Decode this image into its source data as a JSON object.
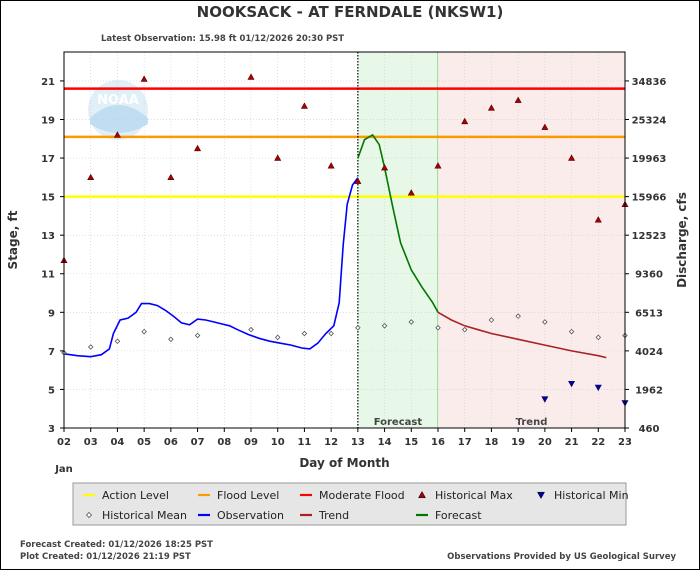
{
  "header": {
    "title": "NOOKSACK - AT FERNDALE  (NKSW1)",
    "latest_observation": "Latest Observation:  15.98 ft 01/12/2026 20:30 PST"
  },
  "footer": {
    "forecast_created": "Forecast Created: 01/12/2026 18:25 PST",
    "plot_created": "Plot Created: 01/12/2026 21:19 PST",
    "credit": "Observations Provided by US Geological Survey"
  },
  "chart_data": {
    "type": "line",
    "xlabel": "Day of Month",
    "x_month_label": "Jan",
    "ylabel": "Stage, ft",
    "y2label": "Discharge, cfs",
    "xlim": [
      2,
      23
    ],
    "ylim": [
      3,
      22.5
    ],
    "x_ticks": [
      "02",
      "03",
      "04",
      "05",
      "06",
      "07",
      "08",
      "09",
      "10",
      "11",
      "12",
      "13",
      "14",
      "15",
      "16",
      "17",
      "18",
      "19",
      "20",
      "21",
      "22",
      "23"
    ],
    "y_ticks": [
      3,
      5,
      7,
      9,
      11,
      13,
      15,
      17,
      19,
      21
    ],
    "y2_ticks": [
      {
        "stage": 3,
        "label": "460"
      },
      {
        "stage": 5,
        "label": "1962"
      },
      {
        "stage": 7,
        "label": "4024"
      },
      {
        "stage": 9,
        "label": "6513"
      },
      {
        "stage": 11,
        "label": "9360"
      },
      {
        "stage": 13,
        "label": "12523"
      },
      {
        "stage": 15,
        "label": "15966"
      },
      {
        "stage": 17,
        "label": "19963"
      },
      {
        "stage": 19,
        "label": "25324"
      },
      {
        "stage": 21,
        "label": "34836"
      }
    ],
    "grid": true,
    "levels": [
      {
        "name": "Action Level",
        "value": 15.0,
        "color": "#ffff00"
      },
      {
        "name": "Flood Level",
        "value": 18.1,
        "color": "#ff9900"
      },
      {
        "name": "Moderate Flood",
        "value": 20.6,
        "color": "#ff0000"
      }
    ],
    "regions": [
      {
        "label": "Forecast",
        "from": 13,
        "to": 16,
        "color": "#e8f8e8",
        "border": "#33cc33"
      },
      {
        "label": "Trend",
        "from": 16,
        "to": 23,
        "color": "#fbecec",
        "border": "#ff9999"
      }
    ],
    "observation_time": 13.0,
    "series": [
      {
        "name": "Observation",
        "color": "#0000ff",
        "points": [
          [
            2.0,
            6.85
          ],
          [
            2.5,
            6.75
          ],
          [
            3.0,
            6.7
          ],
          [
            3.4,
            6.8
          ],
          [
            3.7,
            7.1
          ],
          [
            3.85,
            7.9
          ],
          [
            4.1,
            8.6
          ],
          [
            4.4,
            8.7
          ],
          [
            4.7,
            9.0
          ],
          [
            4.9,
            9.45
          ],
          [
            5.2,
            9.45
          ],
          [
            5.5,
            9.35
          ],
          [
            5.8,
            9.1
          ],
          [
            6.1,
            8.8
          ],
          [
            6.4,
            8.45
          ],
          [
            6.7,
            8.35
          ],
          [
            7.0,
            8.65
          ],
          [
            7.3,
            8.6
          ],
          [
            7.6,
            8.5
          ],
          [
            7.9,
            8.4
          ],
          [
            8.2,
            8.3
          ],
          [
            8.5,
            8.1
          ],
          [
            8.9,
            7.85
          ],
          [
            9.3,
            7.65
          ],
          [
            9.7,
            7.5
          ],
          [
            10.1,
            7.4
          ],
          [
            10.5,
            7.3
          ],
          [
            10.9,
            7.15
          ],
          [
            11.2,
            7.1
          ],
          [
            11.5,
            7.4
          ],
          [
            11.8,
            7.9
          ],
          [
            12.1,
            8.3
          ],
          [
            12.3,
            9.5
          ],
          [
            12.45,
            12.5
          ],
          [
            12.6,
            14.6
          ],
          [
            12.8,
            15.6
          ],
          [
            13.0,
            15.98
          ]
        ]
      },
      {
        "name": "Forecast",
        "color": "#007700",
        "points": [
          [
            13.0,
            17.0
          ],
          [
            13.25,
            17.95
          ],
          [
            13.55,
            18.2
          ],
          [
            13.8,
            17.7
          ],
          [
            14.0,
            16.5
          ],
          [
            14.3,
            14.5
          ],
          [
            14.6,
            12.6
          ],
          [
            15.0,
            11.2
          ],
          [
            15.4,
            10.3
          ],
          [
            15.8,
            9.5
          ],
          [
            16.0,
            9.0
          ]
        ]
      },
      {
        "name": "Trend",
        "color": "#aa2222",
        "points": [
          [
            16.0,
            9.0
          ],
          [
            16.5,
            8.6
          ],
          [
            17.0,
            8.3
          ],
          [
            17.5,
            8.1
          ],
          [
            18.0,
            7.9
          ],
          [
            19.0,
            7.6
          ],
          [
            20.0,
            7.3
          ],
          [
            21.0,
            7.0
          ],
          [
            22.0,
            6.75
          ],
          [
            22.3,
            6.65
          ]
        ]
      }
    ],
    "historical_max": [
      [
        2,
        11.7
      ],
      [
        3,
        16.0
      ],
      [
        4,
        18.2
      ],
      [
        5,
        21.1
      ],
      [
        6,
        16.0
      ],
      [
        7,
        17.5
      ],
      [
        9,
        21.2
      ],
      [
        10,
        17.0
      ],
      [
        11,
        19.7
      ],
      [
        12,
        16.6
      ],
      [
        13,
        15.8
      ],
      [
        14,
        16.5
      ],
      [
        15,
        15.2
      ],
      [
        16,
        16.6
      ],
      [
        17,
        18.9
      ],
      [
        18,
        19.6
      ],
      [
        19,
        20.0
      ],
      [
        20,
        18.6
      ],
      [
        21,
        17.0
      ],
      [
        22,
        13.8
      ],
      [
        23,
        14.6
      ]
    ],
    "historical_min": [
      [
        20,
        4.5
      ],
      [
        21,
        5.3
      ],
      [
        22,
        5.1
      ],
      [
        23,
        4.3
      ]
    ],
    "historical_mean": [
      [
        2,
        6.9
      ],
      [
        3,
        7.2
      ],
      [
        4,
        7.5
      ],
      [
        5,
        8.0
      ],
      [
        6,
        7.6
      ],
      [
        7,
        7.8
      ],
      [
        9,
        8.1
      ],
      [
        10,
        7.7
      ],
      [
        11,
        7.9
      ],
      [
        12,
        7.9
      ],
      [
        13,
        8.2
      ],
      [
        14,
        8.3
      ],
      [
        15,
        8.5
      ],
      [
        16,
        8.2
      ],
      [
        17,
        8.1
      ],
      [
        18,
        8.6
      ],
      [
        19,
        8.8
      ],
      [
        20,
        8.5
      ],
      [
        21,
        8.0
      ],
      [
        22,
        7.7
      ],
      [
        23,
        7.8
      ]
    ],
    "legend": [
      {
        "label": "Action Level",
        "kind": "line",
        "color": "#ffff00"
      },
      {
        "label": "Flood Level",
        "kind": "line",
        "color": "#ff9900"
      },
      {
        "label": "Moderate Flood",
        "kind": "line",
        "color": "#ff0000"
      },
      {
        "label": "Historical Max",
        "kind": "tri-up",
        "color": "#aa0000"
      },
      {
        "label": "Historical Min",
        "kind": "tri-down",
        "color": "#0000aa"
      },
      {
        "label": "Historical Mean",
        "kind": "diamond",
        "color": "#555555"
      },
      {
        "label": "Observation",
        "kind": "line",
        "color": "#0000ff"
      },
      {
        "label": "Trend",
        "kind": "line",
        "color": "#aa2222"
      },
      {
        "label": "Forecast",
        "kind": "line",
        "color": "#007700"
      }
    ],
    "logo_text": "NOAA"
  }
}
